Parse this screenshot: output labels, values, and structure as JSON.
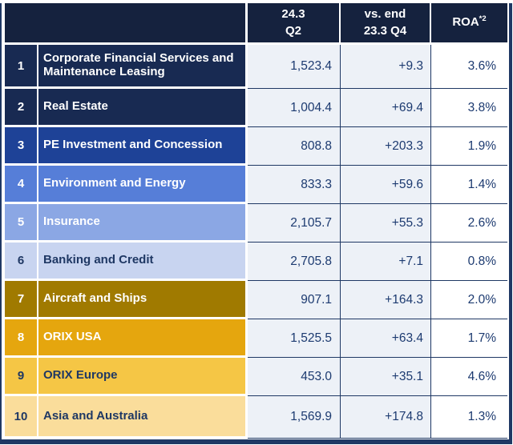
{
  "chart_data": {
    "type": "table",
    "columns": [
      {
        "name": "segment_number",
        "label": ""
      },
      {
        "name": "segment_name",
        "label": ""
      },
      {
        "name": "value",
        "label_line1": "24.3",
        "label_line2": "Q2"
      },
      {
        "name": "change",
        "label_line1": "vs. end",
        "label_line2": "23.3 Q4"
      },
      {
        "name": "roa",
        "label": "ROA",
        "superscript": "*2"
      }
    ],
    "rows": [
      {
        "num": "1",
        "label": "Corporate Financial Services and Maintenance Leasing",
        "value": "1,523.4",
        "change": "+9.3",
        "roa": "3.6%",
        "bg": "#182A52",
        "fg": "#FFFFFF"
      },
      {
        "num": "2",
        "label": "Real Estate",
        "value": "1,004.4",
        "change": "+69.4",
        "roa": "3.8%",
        "bg": "#182A52",
        "fg": "#FFFFFF"
      },
      {
        "num": "3",
        "label": "PE Investment and Concession",
        "value": "808.8",
        "change": "+203.3",
        "roa": "1.9%",
        "bg": "#1E4297",
        "fg": "#FFFFFF"
      },
      {
        "num": "4",
        "label": "Environment and Energy",
        "value": "833.3",
        "change": "+59.6",
        "roa": "1.4%",
        "bg": "#567ED8",
        "fg": "#FFFFFF"
      },
      {
        "num": "5",
        "label": "Insurance",
        "value": "2,105.7",
        "change": "+55.3",
        "roa": "2.6%",
        "bg": "#8BA7E4",
        "fg": "#FFFFFF"
      },
      {
        "num": "6",
        "label": "Banking and Credit",
        "value": "2,705.8",
        "change": "+7.1",
        "roa": "0.8%",
        "bg": "#C8D4F0",
        "fg": "#1F3864"
      },
      {
        "num": "7",
        "label": "Aircraft and Ships",
        "value": "907.1",
        "change": "+164.3",
        "roa": "2.0%",
        "bg": "#A07A00",
        "fg": "#FFFFFF"
      },
      {
        "num": "8",
        "label": "ORIX USA",
        "value": "1,525.5",
        "change": "+63.4",
        "roa": "1.7%",
        "bg": "#E5A60E",
        "fg": "#FFFFFF"
      },
      {
        "num": "9",
        "label": "ORIX Europe",
        "value": "453.0",
        "change": "+35.1",
        "roa": "4.6%",
        "bg": "#F5C645",
        "fg": "#1F3864"
      },
      {
        "num": "10",
        "label": "Asia and Australia",
        "value": "1,569.9",
        "change": "+174.8",
        "roa": "1.3%",
        "bg": "#FADD9B",
        "fg": "#1F3864"
      }
    ],
    "colors": {
      "header_bg": "#15223E",
      "header_fg": "#FFFFFF",
      "value_cell_bg": "#EDF1F7",
      "roa_cell_bg": "#FFFFFF",
      "value_text": "#1C3A70",
      "grid_line": "#1F3864",
      "outer_border": "#1F3864"
    }
  }
}
